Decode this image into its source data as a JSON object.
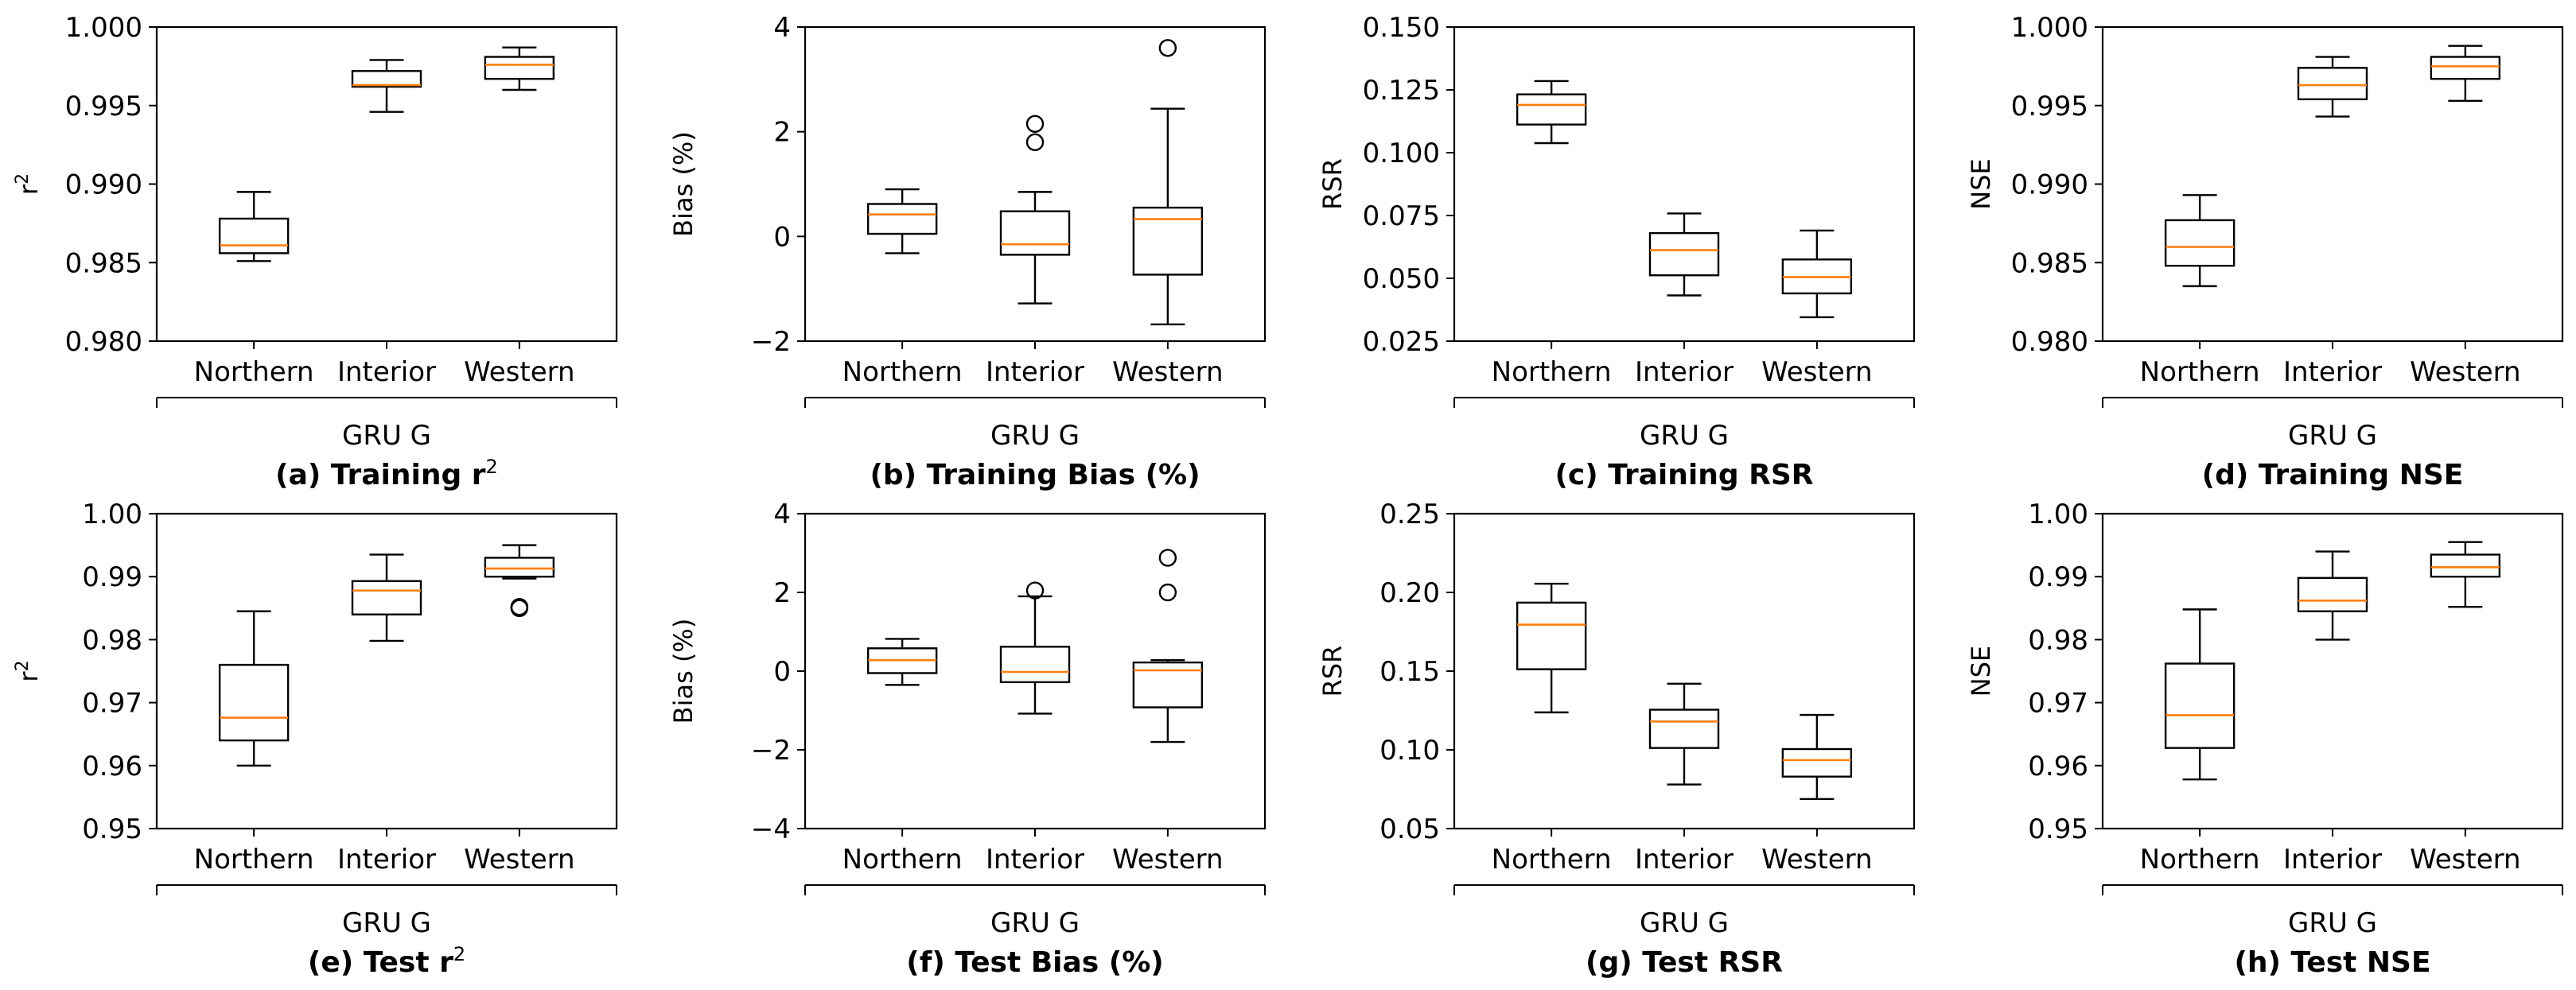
{
  "chart_data": [
    {
      "type": "boxplot",
      "caption": "(a) Training r",
      "caption_sup": "2",
      "ylabel": "r",
      "ylabel_sup": "2",
      "ylim": [
        0.98,
        1.0
      ],
      "yticks": [
        "0.980",
        "0.985",
        "0.990",
        "0.995",
        "1.000"
      ],
      "ytick_values": [
        0.98,
        0.985,
        0.99,
        0.995,
        1.0
      ],
      "categories": [
        "Northern",
        "Interior",
        "Western"
      ],
      "group_label": "GRU G",
      "boxes": [
        {
          "whislo": 0.9851,
          "q1": 0.9856,
          "med": 0.9861,
          "q3": 0.9878,
          "whishi": 0.9895,
          "fliers": []
        },
        {
          "whislo": 0.9946,
          "q1": 0.9962,
          "med": 0.9963,
          "q3": 0.9972,
          "whishi": 0.9979,
          "fliers": []
        },
        {
          "whislo": 0.996,
          "q1": 0.9967,
          "med": 0.9976,
          "q3": 0.9981,
          "whishi": 0.9987,
          "fliers": []
        }
      ]
    },
    {
      "type": "boxplot",
      "caption": "(b) Training Bias (%)",
      "caption_sup": "",
      "ylabel": "Bias (%)",
      "ylabel_sup": "",
      "ylim": [
        -2,
        4
      ],
      "yticks": [
        "−2",
        "0",
        "2",
        "4"
      ],
      "ytick_values": [
        -2,
        0,
        2,
        4
      ],
      "categories": [
        "Northern",
        "Interior",
        "Western"
      ],
      "group_label": "GRU G",
      "boxes": [
        {
          "whislo": -0.32,
          "q1": 0.05,
          "med": 0.42,
          "q3": 0.62,
          "whishi": 0.9,
          "fliers": []
        },
        {
          "whislo": -1.28,
          "q1": -0.35,
          "med": -0.15,
          "q3": 0.48,
          "whishi": 0.85,
          "fliers": [
            1.8,
            2.15
          ]
        },
        {
          "whislo": -1.68,
          "q1": -0.73,
          "med": 0.33,
          "q3": 0.55,
          "whishi": 2.44,
          "fliers": [
            3.6
          ]
        }
      ]
    },
    {
      "type": "boxplot",
      "caption": "(c) Training RSR",
      "caption_sup": "",
      "ylabel": "RSR",
      "ylabel_sup": "",
      "ylim": [
        0.025,
        0.15
      ],
      "yticks": [
        "0.025",
        "0.050",
        "0.075",
        "0.100",
        "0.125",
        "0.150"
      ],
      "ytick_values": [
        0.025,
        0.05,
        0.075,
        0.1,
        0.125,
        0.15
      ],
      "categories": [
        "Northern",
        "Interior",
        "Western"
      ],
      "group_label": "GRU G",
      "boxes": [
        {
          "whislo": 0.1038,
          "q1": 0.1112,
          "med": 0.119,
          "q3": 0.1232,
          "whishi": 0.1285,
          "fliers": []
        },
        {
          "whislo": 0.0432,
          "q1": 0.0512,
          "med": 0.0612,
          "q3": 0.068,
          "whishi": 0.0758,
          "fliers": []
        },
        {
          "whislo": 0.0345,
          "q1": 0.044,
          "med": 0.0505,
          "q3": 0.0575,
          "whishi": 0.069,
          "fliers": []
        }
      ]
    },
    {
      "type": "boxplot",
      "caption": "(d) Training NSE",
      "caption_sup": "",
      "ylabel": "NSE",
      "ylabel_sup": "",
      "ylim": [
        0.98,
        1.0
      ],
      "yticks": [
        "0.980",
        "0.985",
        "0.990",
        "0.995",
        "1.000"
      ],
      "ytick_values": [
        0.98,
        0.985,
        0.99,
        0.995,
        1.0
      ],
      "categories": [
        "Northern",
        "Interior",
        "Western"
      ],
      "group_label": "GRU G",
      "boxes": [
        {
          "whislo": 0.9835,
          "q1": 0.9848,
          "med": 0.986,
          "q3": 0.9877,
          "whishi": 0.9893,
          "fliers": []
        },
        {
          "whislo": 0.9943,
          "q1": 0.9954,
          "med": 0.9963,
          "q3": 0.9974,
          "whishi": 0.9981,
          "fliers": []
        },
        {
          "whislo": 0.9953,
          "q1": 0.9967,
          "med": 0.9975,
          "q3": 0.9981,
          "whishi": 0.9988,
          "fliers": []
        }
      ]
    },
    {
      "type": "boxplot",
      "caption": "(e) Test r",
      "caption_sup": "2",
      "ylabel": "r",
      "ylabel_sup": "2",
      "ylim": [
        0.95,
        1.0
      ],
      "yticks": [
        "0.95",
        "0.96",
        "0.97",
        "0.98",
        "0.99",
        "1.00"
      ],
      "ytick_values": [
        0.95,
        0.96,
        0.97,
        0.98,
        0.99,
        1.0
      ],
      "categories": [
        "Northern",
        "Interior",
        "Western"
      ],
      "group_label": "GRU G",
      "boxes": [
        {
          "whislo": 0.96,
          "q1": 0.964,
          "med": 0.9676,
          "q3": 0.976,
          "whishi": 0.9845,
          "fliers": []
        },
        {
          "whislo": 0.9798,
          "q1": 0.984,
          "med": 0.9878,
          "q3": 0.9893,
          "whishi": 0.9935,
          "fliers": []
        },
        {
          "whislo": 0.9897,
          "q1": 0.99,
          "med": 0.9913,
          "q3": 0.993,
          "whishi": 0.995,
          "fliers": [
            0.985,
            0.9852
          ]
        }
      ]
    },
    {
      "type": "boxplot",
      "caption": "(f) Test Bias (%)",
      "caption_sup": "",
      "ylabel": "Bias (%)",
      "ylabel_sup": "",
      "ylim": [
        -4,
        4
      ],
      "yticks": [
        "−4",
        "−2",
        "0",
        "2",
        "4"
      ],
      "ytick_values": [
        -4,
        -2,
        0,
        2,
        4
      ],
      "categories": [
        "Northern",
        "Interior",
        "Western"
      ],
      "group_label": "GRU G",
      "boxes": [
        {
          "whislo": -0.35,
          "q1": -0.05,
          "med": 0.28,
          "q3": 0.58,
          "whishi": 0.82,
          "fliers": []
        },
        {
          "whislo": -1.08,
          "q1": -0.28,
          "med": -0.02,
          "q3": 0.62,
          "whishi": 1.9,
          "fliers": [
            2.05
          ]
        },
        {
          "whislo": -1.8,
          "q1": -0.92,
          "med": 0.02,
          "q3": 0.22,
          "whishi": 0.28,
          "fliers": [
            2.0,
            2.88
          ]
        }
      ]
    },
    {
      "type": "boxplot",
      "caption": "(g) Test RSR",
      "caption_sup": "",
      "ylabel": "RSR",
      "ylabel_sup": "",
      "ylim": [
        0.05,
        0.25
      ],
      "yticks": [
        "0.05",
        "0.10",
        "0.15",
        "0.20",
        "0.25"
      ],
      "ytick_values": [
        0.05,
        0.1,
        0.15,
        0.2,
        0.25
      ],
      "categories": [
        "Northern",
        "Interior",
        "Western"
      ],
      "group_label": "GRU G",
      "boxes": [
        {
          "whislo": 0.1238,
          "q1": 0.1512,
          "med": 0.1795,
          "q3": 0.1935,
          "whishi": 0.2055,
          "fliers": []
        },
        {
          "whislo": 0.078,
          "q1": 0.1012,
          "med": 0.118,
          "q3": 0.1255,
          "whishi": 0.142,
          "fliers": []
        },
        {
          "whislo": 0.0688,
          "q1": 0.083,
          "med": 0.0935,
          "q3": 0.1005,
          "whishi": 0.1222,
          "fliers": []
        }
      ]
    },
    {
      "type": "boxplot",
      "caption": "(h) Test NSE",
      "caption_sup": "",
      "ylabel": "NSE",
      "ylabel_sup": "",
      "ylim": [
        0.95,
        1.0
      ],
      "yticks": [
        "0.95",
        "0.96",
        "0.97",
        "0.98",
        "0.99",
        "1.00"
      ],
      "ytick_values": [
        0.95,
        0.96,
        0.97,
        0.98,
        0.99,
        1.0
      ],
      "categories": [
        "Northern",
        "Interior",
        "Western"
      ],
      "group_label": "GRU G",
      "boxes": [
        {
          "whislo": 0.9578,
          "q1": 0.9628,
          "med": 0.968,
          "q3": 0.9762,
          "whishi": 0.9848,
          "fliers": []
        },
        {
          "whislo": 0.98,
          "q1": 0.9845,
          "med": 0.9862,
          "q3": 0.9898,
          "whishi": 0.994,
          "fliers": []
        },
        {
          "whislo": 0.9852,
          "q1": 0.99,
          "med": 0.9915,
          "q3": 0.9935,
          "whishi": 0.9955,
          "fliers": []
        }
      ]
    }
  ],
  "colors": {
    "box": "#000000",
    "median": "#ff7f0e",
    "background": "#ffffff"
  }
}
